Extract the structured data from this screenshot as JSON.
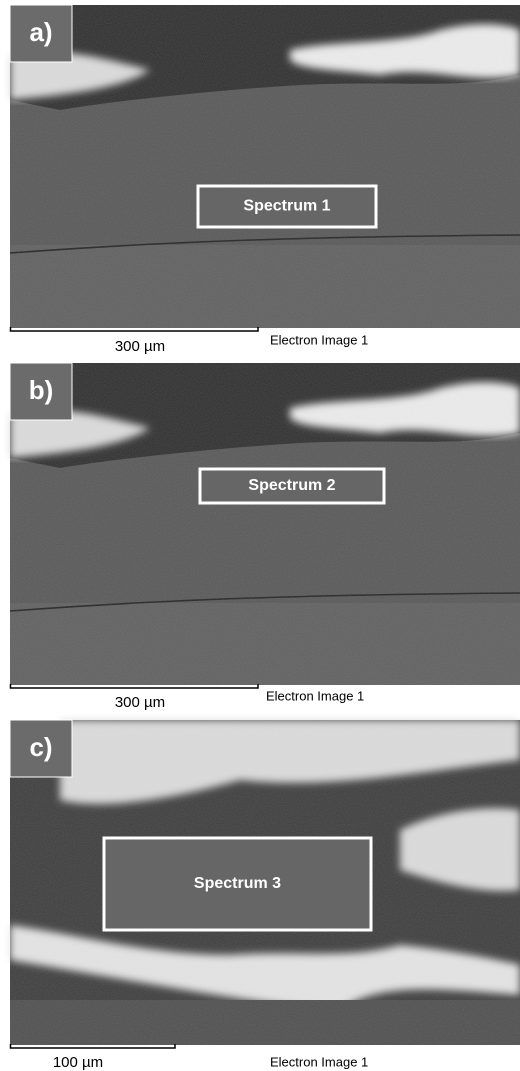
{
  "panels": [
    {
      "label": "a)",
      "spectrum": "Spectrum 1",
      "scale": "300 µm",
      "caption": "Electron Image 1"
    },
    {
      "label": "b)",
      "spectrum": "Spectrum 2",
      "scale": "300 µm",
      "caption": "Electron Image 1"
    },
    {
      "label": "c)",
      "spectrum": "Spectrum 3",
      "scale": "100 µm",
      "caption": "Electron Image 1"
    }
  ]
}
